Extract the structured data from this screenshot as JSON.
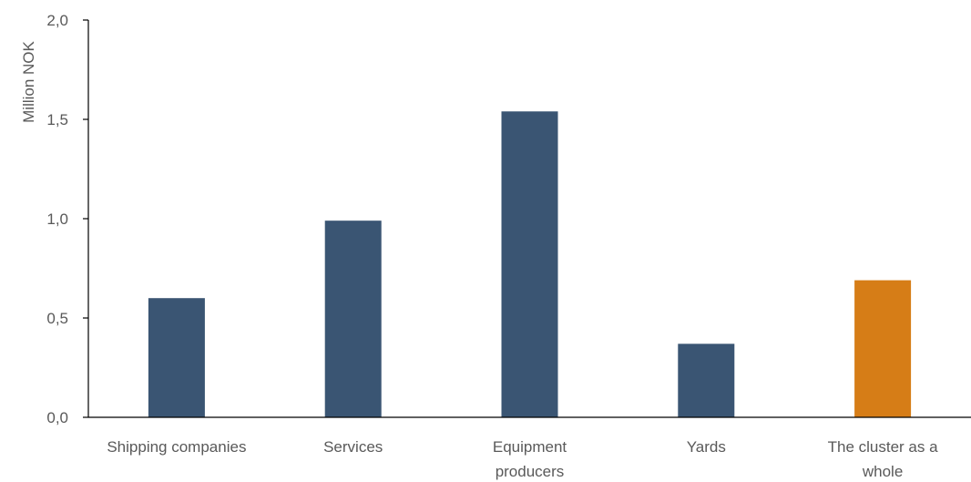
{
  "chart_data": {
    "type": "bar",
    "title": "",
    "xlabel": "",
    "ylabel": "Million NOK",
    "ylim": [
      0,
      2.0
    ],
    "yticks": [
      "0,0",
      "0,5",
      "1,0",
      "1,5",
      "2,0"
    ],
    "ytick_values": [
      0,
      0.5,
      1.0,
      1.5,
      2.0
    ],
    "grid": false,
    "legend": "none",
    "categories": [
      [
        "Shipping companies"
      ],
      [
        "Services"
      ],
      [
        "Equipment",
        "producers"
      ],
      [
        "Yards"
      ],
      [
        "The cluster as a",
        "whole"
      ]
    ],
    "values": [
      0.6,
      0.99,
      1.54,
      0.37,
      0.69
    ],
    "colors": [
      "#3a5573",
      "#3a5573",
      "#3a5573",
      "#3a5573",
      "#d67d17"
    ]
  }
}
